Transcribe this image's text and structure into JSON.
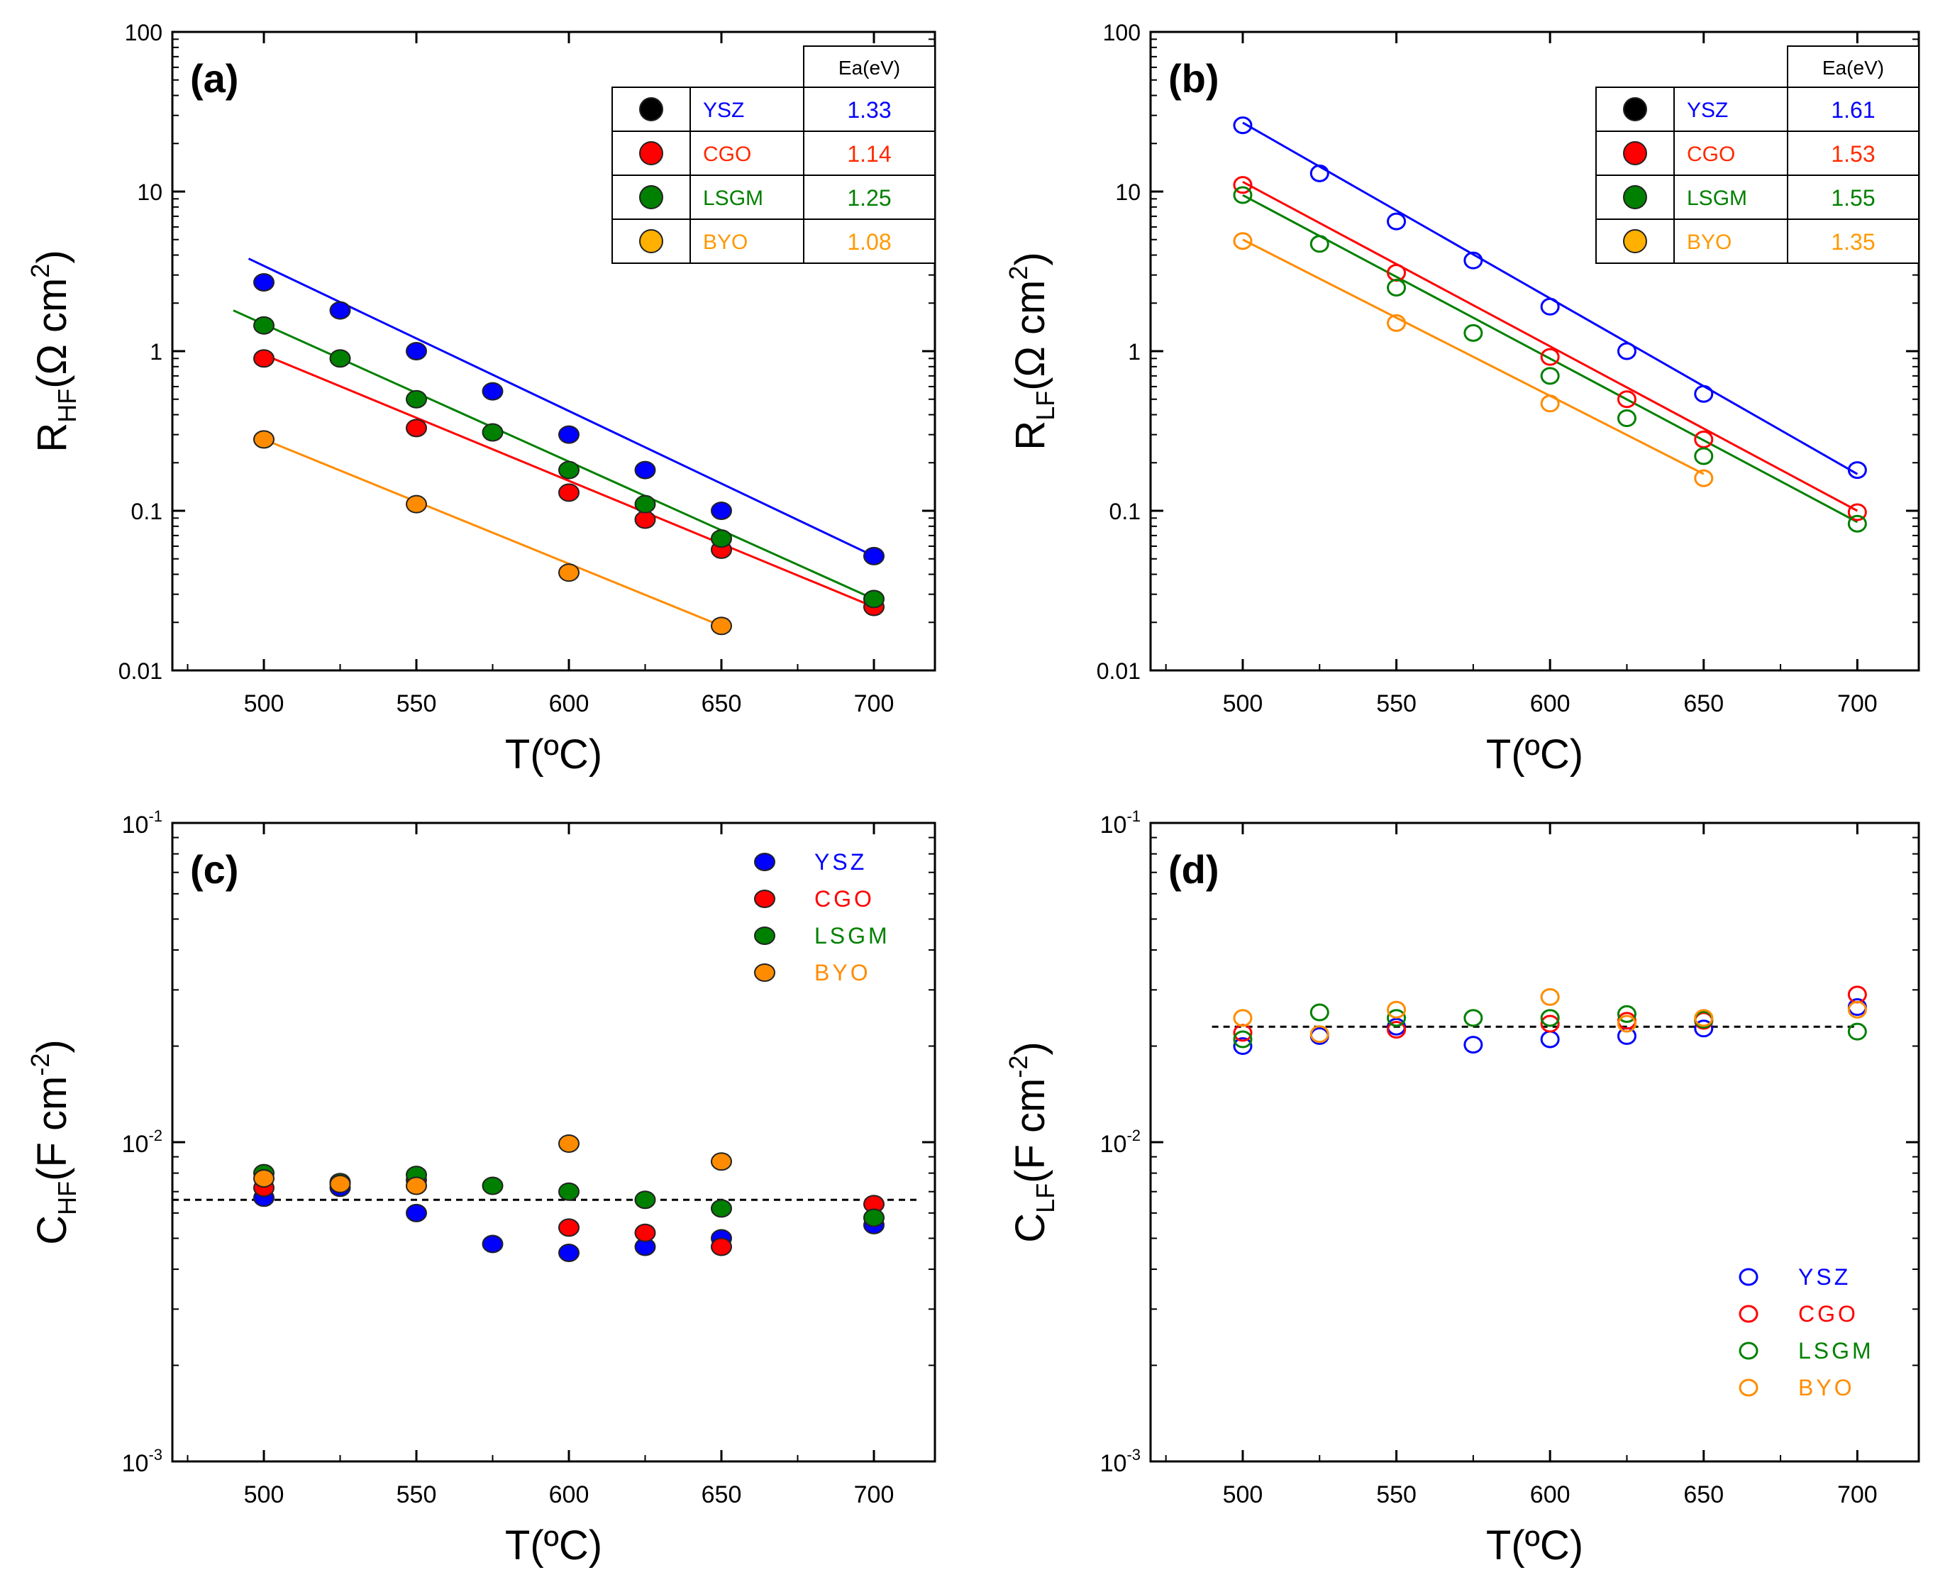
{
  "figure": {
    "series_colors": {
      "YSZ": "#0000ff",
      "CGO": "#ff0000",
      "LSGM": "#008000",
      "BYO": "#ff8c00"
    },
    "ea_text_colors": {
      "YSZ": "#0000ff",
      "CGO": "#ff2a00",
      "LSGM": "#008000",
      "BYO": "#ff9900"
    }
  },
  "chart_data": [
    {
      "panel": "(a)",
      "type": "scatter",
      "marker": "filled",
      "xlabel": "T(ºC)",
      "ylabel_main": "R",
      "ylabel_sub": "HF",
      "ylabel_unit": "(Ω cm",
      "ylabel_sup": "2",
      "ylabel_close": ")",
      "yscale": "log",
      "xlim": [
        470,
        720
      ],
      "ylim": [
        0.01,
        100
      ],
      "xticks": [
        500,
        550,
        600,
        650,
        700
      ],
      "yticks": [
        {
          "v": 0.01,
          "t": "0.01"
        },
        {
          "v": 0.1,
          "t": "0.1"
        },
        {
          "v": 1,
          "t": "1"
        },
        {
          "v": 10,
          "t": "10"
        },
        {
          "v": 100,
          "t": "100"
        }
      ],
      "legend": "table-top-right",
      "ea_header": "Ea(eV)",
      "series": [
        {
          "name": "YSZ",
          "ea": "1.33",
          "points": [
            [
              500,
              2.7
            ],
            [
              525,
              1.8
            ],
            [
              550,
              1.0
            ],
            [
              575,
              0.56
            ],
            [
              600,
              0.3
            ],
            [
              625,
              0.18
            ],
            [
              650,
              0.1
            ],
            [
              700,
              0.052
            ]
          ],
          "fit": [
            [
              495,
              3.8
            ],
            [
              700,
              0.052
            ]
          ]
        },
        {
          "name": "CGO",
          "ea": "1.14",
          "points": [
            [
              500,
              0.9
            ],
            [
              550,
              0.33
            ],
            [
              600,
              0.13
            ],
            [
              625,
              0.088
            ],
            [
              650,
              0.057
            ],
            [
              700,
              0.025
            ]
          ],
          "fit": [
            [
              500,
              0.95
            ],
            [
              700,
              0.025
            ]
          ]
        },
        {
          "name": "LSGM",
          "ea": "1.25",
          "points": [
            [
              500,
              1.45
            ],
            [
              525,
              0.9
            ],
            [
              550,
              0.5
            ],
            [
              575,
              0.31
            ],
            [
              600,
              0.18
            ],
            [
              625,
              0.11
            ],
            [
              650,
              0.067
            ],
            [
              700,
              0.028
            ]
          ],
          "fit": [
            [
              490,
              1.8
            ],
            [
              700,
              0.028
            ]
          ]
        },
        {
          "name": "BYO",
          "ea": "1.08",
          "points": [
            [
              500,
              0.28
            ],
            [
              550,
              0.11
            ],
            [
              600,
              0.041
            ],
            [
              650,
              0.019
            ]
          ],
          "fit": [
            [
              500,
              0.28
            ],
            [
              650,
              0.019
            ]
          ]
        }
      ]
    },
    {
      "panel": "(b)",
      "type": "scatter",
      "marker": "open",
      "xlabel": "T(ºC)",
      "ylabel_main": "R",
      "ylabel_sub": "LF",
      "ylabel_unit": "(Ω cm",
      "ylabel_sup": "2",
      "ylabel_close": ")",
      "yscale": "log",
      "xlim": [
        470,
        720
      ],
      "ylim": [
        0.01,
        100
      ],
      "xticks": [
        500,
        550,
        600,
        650,
        700
      ],
      "yticks": [
        {
          "v": 0.01,
          "t": "0.01"
        },
        {
          "v": 0.1,
          "t": "0.1"
        },
        {
          "v": 1,
          "t": "1"
        },
        {
          "v": 10,
          "t": "10"
        },
        {
          "v": 100,
          "t": "100"
        }
      ],
      "legend": "table-top-right",
      "ea_header": "Ea(eV)",
      "series": [
        {
          "name": "YSZ",
          "ea": "1.61",
          "points": [
            [
              500,
              26
            ],
            [
              525,
              13
            ],
            [
              550,
              6.5
            ],
            [
              575,
              3.7
            ],
            [
              600,
              1.9
            ],
            [
              625,
              1.0
            ],
            [
              650,
              0.54
            ],
            [
              700,
              0.18
            ]
          ],
          "fit": [
            [
              500,
              27
            ],
            [
              700,
              0.17
            ]
          ]
        },
        {
          "name": "CGO",
          "ea": "1.53",
          "points": [
            [
              500,
              11
            ],
            [
              550,
              3.1
            ],
            [
              600,
              0.92
            ],
            [
              625,
              0.5
            ],
            [
              650,
              0.28
            ],
            [
              700,
              0.098
            ]
          ],
          "fit": [
            [
              500,
              11.5
            ],
            [
              700,
              0.1
            ]
          ]
        },
        {
          "name": "LSGM",
          "ea": "1.55",
          "points": [
            [
              500,
              9.5
            ],
            [
              525,
              4.7
            ],
            [
              550,
              2.5
            ],
            [
              575,
              1.3
            ],
            [
              600,
              0.7
            ],
            [
              625,
              0.38
            ],
            [
              650,
              0.22
            ],
            [
              700,
              0.083
            ]
          ],
          "fit": [
            [
              500,
              9.5
            ],
            [
              700,
              0.085
            ]
          ]
        },
        {
          "name": "BYO",
          "ea": "1.35",
          "points": [
            [
              500,
              4.9
            ],
            [
              550,
              1.5
            ],
            [
              600,
              0.47
            ],
            [
              650,
              0.16
            ]
          ],
          "fit": [
            [
              500,
              5.0
            ],
            [
              650,
              0.17
            ]
          ]
        }
      ]
    },
    {
      "panel": "(c)",
      "type": "scatter",
      "marker": "filled",
      "xlabel": "T(ºC)",
      "ylabel_main": "C",
      "ylabel_sub": "HF",
      "ylabel_unit": "(F cm",
      "ylabel_sup": "-2",
      "ylabel_close": ")",
      "yscale": "log",
      "xlim": [
        470,
        720
      ],
      "ylim": [
        0.001,
        0.1
      ],
      "xticks": [
        500,
        550,
        600,
        650,
        700
      ],
      "yticks": [
        {
          "v": 0.001,
          "m": "10",
          "e": "-3"
        },
        {
          "v": 0.01,
          "m": "10",
          "e": "-2"
        },
        {
          "v": 0.1,
          "m": "10",
          "e": "-1"
        }
      ],
      "legend": "top-right",
      "reference_line": {
        "y": 0.0066,
        "x": [
          470,
          715
        ]
      },
      "series": [
        {
          "name": "YSZ",
          "points": [
            [
              500,
              0.0067
            ],
            [
              525,
              0.0072
            ],
            [
              550,
              0.006
            ],
            [
              575,
              0.0048
            ],
            [
              600,
              0.0045
            ],
            [
              625,
              0.0047
            ],
            [
              650,
              0.005
            ],
            [
              700,
              0.0055
            ]
          ]
        },
        {
          "name": "CGO",
          "points": [
            [
              500,
              0.0072
            ],
            [
              550,
              0.0076
            ],
            [
              600,
              0.0054
            ],
            [
              625,
              0.0052
            ],
            [
              650,
              0.0047
            ],
            [
              700,
              0.0064
            ]
          ]
        },
        {
          "name": "LSGM",
          "points": [
            [
              500,
              0.008
            ],
            [
              525,
              0.0075
            ],
            [
              550,
              0.0079
            ],
            [
              575,
              0.0073
            ],
            [
              600,
              0.007
            ],
            [
              625,
              0.0066
            ],
            [
              650,
              0.0062
            ],
            [
              700,
              0.0058
            ]
          ]
        },
        {
          "name": "BYO",
          "points": [
            [
              500,
              0.0077
            ],
            [
              525,
              0.0074
            ],
            [
              550,
              0.0073
            ],
            [
              600,
              0.0099
            ],
            [
              650,
              0.0087
            ]
          ]
        }
      ]
    },
    {
      "panel": "(d)",
      "type": "scatter",
      "marker": "open",
      "xlabel": "T(ºC)",
      "ylabel_main": "C",
      "ylabel_sub": "LF",
      "ylabel_unit": "(F cm",
      "ylabel_sup": "-2",
      "ylabel_close": ")",
      "yscale": "log",
      "xlim": [
        470,
        720
      ],
      "ylim": [
        0.001,
        0.1
      ],
      "xticks": [
        500,
        550,
        600,
        650,
        700
      ],
      "yticks": [
        {
          "v": 0.001,
          "m": "10",
          "e": "-3"
        },
        {
          "v": 0.01,
          "m": "10",
          "e": "-2"
        },
        {
          "v": 0.1,
          "m": "10",
          "e": "-1"
        }
      ],
      "legend": "bottom-right",
      "reference_line": {
        "y": 0.023,
        "x": [
          490,
          700
        ]
      },
      "series": [
        {
          "name": "YSZ",
          "points": [
            [
              500,
              0.02
            ],
            [
              525,
              0.0215
            ],
            [
              550,
              0.023
            ],
            [
              575,
              0.0202
            ],
            [
              600,
              0.021
            ],
            [
              625,
              0.0215
            ],
            [
              650,
              0.0227
            ],
            [
              700,
              0.0265
            ]
          ]
        },
        {
          "name": "CGO",
          "points": [
            [
              500,
              0.022
            ],
            [
              550,
              0.0225
            ],
            [
              600,
              0.0235
            ],
            [
              625,
              0.024
            ],
            [
              650,
              0.024
            ],
            [
              700,
              0.029
            ]
          ]
        },
        {
          "name": "LSGM",
          "points": [
            [
              500,
              0.021
            ],
            [
              525,
              0.0255
            ],
            [
              550,
              0.0245
            ],
            [
              575,
              0.0245
            ],
            [
              600,
              0.0245
            ],
            [
              625,
              0.0252
            ],
            [
              650,
              0.0242
            ],
            [
              700,
              0.0222
            ]
          ]
        },
        {
          "name": "BYO",
          "points": [
            [
              500,
              0.0245
            ],
            [
              525,
              0.0218
            ],
            [
              550,
              0.026
            ],
            [
              600,
              0.0285
            ],
            [
              625,
              0.0235
            ],
            [
              650,
              0.0245
            ],
            [
              700,
              0.026
            ]
          ]
        }
      ]
    }
  ]
}
